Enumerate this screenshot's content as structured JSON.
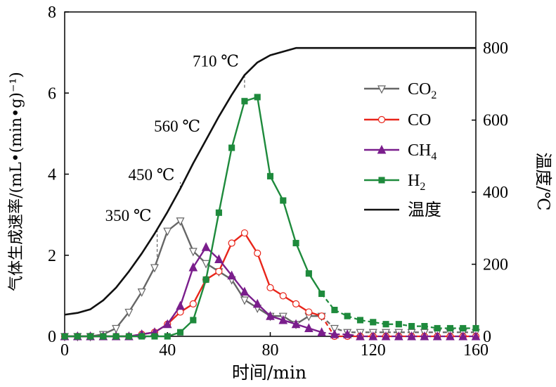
{
  "chart_data": {
    "type": "line",
    "xlabel": "时间/min",
    "ylabel_left": "气体生成速率/(mL•(min•g)⁻¹)",
    "ylabel_right": "温度/℃",
    "xlim": [
      0,
      160
    ],
    "ylim_left": [
      0,
      8
    ],
    "ylim_right": [
      0,
      900
    ],
    "xticks": [
      0,
      40,
      80,
      120,
      160
    ],
    "yticks_left": [
      0,
      2,
      4,
      6,
      8
    ],
    "yticks_right": [
      0,
      200,
      400,
      600,
      800
    ],
    "grid": false,
    "legend_position": "right-center",
    "series": [
      {
        "name": "CO₂",
        "name_main": "CO",
        "name_sub": "2",
        "color": "#666666",
        "marker": "triangle-down-open",
        "axis": "left",
        "x": [
          0,
          5,
          10,
          15,
          20,
          25,
          30,
          35,
          40,
          45,
          50,
          55,
          60,
          65,
          70,
          75,
          80,
          85,
          90,
          95,
          100,
          105,
          110,
          115,
          120,
          125,
          130,
          135,
          140,
          145,
          150,
          155,
          160
        ],
        "y": [
          0.0,
          0.0,
          0.0,
          0.05,
          0.2,
          0.6,
          1.1,
          1.7,
          2.6,
          2.85,
          2.1,
          1.8,
          1.6,
          1.4,
          0.9,
          0.7,
          0.5,
          0.5,
          0.3,
          0.5,
          0.5,
          0.2,
          0.1,
          0.1,
          0.1,
          0.1,
          0.1,
          0.1,
          0.1,
          0.1,
          0.1,
          0.1,
          0.1
        ]
      },
      {
        "name": "CO",
        "name_main": "CO",
        "name_sub": "",
        "color": "#e8251a",
        "marker": "circle-open",
        "axis": "left",
        "x": [
          0,
          5,
          10,
          15,
          20,
          25,
          30,
          35,
          40,
          45,
          50,
          55,
          60,
          65,
          70,
          75,
          80,
          85,
          90,
          95,
          100,
          105,
          110,
          115,
          120,
          125,
          130,
          135,
          140,
          145,
          150,
          155,
          160
        ],
        "y": [
          0.0,
          0.0,
          0.0,
          0.0,
          0.0,
          0.0,
          0.05,
          0.1,
          0.3,
          0.6,
          0.8,
          1.4,
          1.6,
          2.3,
          2.55,
          2.05,
          1.2,
          1.0,
          0.8,
          0.6,
          0.5,
          0.0,
          0.0,
          0.0,
          0.0,
          0.0,
          0.0,
          0.0,
          0.0,
          0.0,
          0.0,
          0.0,
          0.0
        ]
      },
      {
        "name": "CH₄",
        "name_main": "CH",
        "name_sub": "4",
        "color": "#7a1e8c",
        "marker": "triangle-up-filled",
        "axis": "left",
        "x": [
          0,
          5,
          10,
          15,
          20,
          25,
          30,
          35,
          40,
          45,
          50,
          55,
          60,
          65,
          70,
          75,
          80,
          85,
          90,
          95,
          100,
          105,
          110,
          115,
          120,
          125,
          130,
          135,
          140,
          145,
          150,
          155,
          160
        ],
        "y": [
          0.0,
          0.0,
          0.0,
          0.0,
          0.0,
          0.0,
          0.05,
          0.1,
          0.3,
          0.75,
          1.7,
          2.2,
          1.9,
          1.5,
          1.1,
          0.8,
          0.5,
          0.4,
          0.3,
          0.2,
          0.1,
          0.05,
          0.05,
          0.0,
          0.0,
          0.0,
          0.0,
          0.0,
          0.0,
          0.0,
          0.0,
          0.0,
          0.0
        ]
      },
      {
        "name": "H₂",
        "name_main": "H",
        "name_sub": "2",
        "color": "#1e8a3c",
        "marker": "square-filled",
        "axis": "left",
        "x": [
          0,
          5,
          10,
          15,
          20,
          25,
          30,
          35,
          40,
          45,
          50,
          55,
          60,
          65,
          70,
          75,
          80,
          85,
          90,
          95,
          100,
          105,
          110,
          115,
          120,
          125,
          130,
          135,
          140,
          145,
          150,
          155,
          160
        ],
        "y": [
          0.0,
          0.0,
          0.0,
          0.0,
          0.0,
          0.0,
          0.0,
          0.0,
          0.0,
          0.1,
          0.4,
          1.4,
          3.05,
          4.65,
          5.8,
          5.9,
          3.95,
          3.35,
          2.3,
          1.55,
          1.05,
          0.65,
          0.5,
          0.4,
          0.35,
          0.3,
          0.3,
          0.25,
          0.25,
          0.2,
          0.2,
          0.2,
          0.2
        ]
      },
      {
        "name": "温度",
        "color": "#111111",
        "marker": "none",
        "axis": "right",
        "x": [
          0,
          5,
          10,
          15,
          20,
          25,
          30,
          35,
          40,
          45,
          50,
          55,
          60,
          65,
          70,
          75,
          80,
          85,
          90,
          100,
          110,
          120,
          130,
          140,
          150,
          160
        ],
        "y": [
          60,
          65,
          75,
          100,
          135,
          180,
          230,
          285,
          345,
          410,
          480,
          545,
          610,
          670,
          725,
          760,
          780,
          790,
          800,
          800,
          800,
          800,
          800,
          800,
          800,
          800
        ]
      }
    ],
    "annotations": [
      {
        "text": "350 ℃",
        "x": 36,
        "y_left": 1.7
      },
      {
        "text": "450 ℃",
        "x": 45,
        "y_left": 3.8
      },
      {
        "text": "560 ℃",
        "x": 55,
        "y_left": 4.85
      },
      {
        "text": "710 ℃",
        "x": 70,
        "y_left": 6.1
      }
    ]
  }
}
